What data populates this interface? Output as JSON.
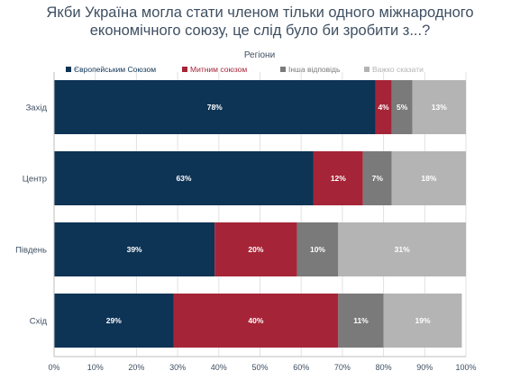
{
  "title_lines": [
    "Якби Україна могла стати членом тільки одного міжнародного",
    "економічного союзу, це слід було би зробити з...?"
  ],
  "chart_data": {
    "type": "bar",
    "orientation": "horizontal",
    "stacked": true,
    "legend_title": "Регіони",
    "legend_position": "top",
    "categories": [
      "Захід",
      "Центр",
      "Південь",
      "Схід"
    ],
    "series": [
      {
        "name": "Європейським Союзом",
        "color": "#0d3355",
        "values": [
          78,
          63,
          39,
          29
        ]
      },
      {
        "name": "Митним союзом",
        "color": "#a52437",
        "values": [
          4,
          12,
          20,
          40
        ]
      },
      {
        "name": "Інша відповідь",
        "color": "#7a7a7a",
        "values": [
          5,
          7,
          10,
          11
        ]
      },
      {
        "name": "Важко сказати",
        "color": "#b4b4b4",
        "values": [
          13,
          18,
          31,
          19
        ]
      }
    ],
    "value_suffix": "%",
    "xlim": [
      0,
      100
    ],
    "x_ticks": [
      "0%",
      "10%",
      "20%",
      "30%",
      "40%",
      "50%",
      "60%",
      "70%",
      "80%",
      "90%",
      "100%"
    ],
    "grid": true
  }
}
